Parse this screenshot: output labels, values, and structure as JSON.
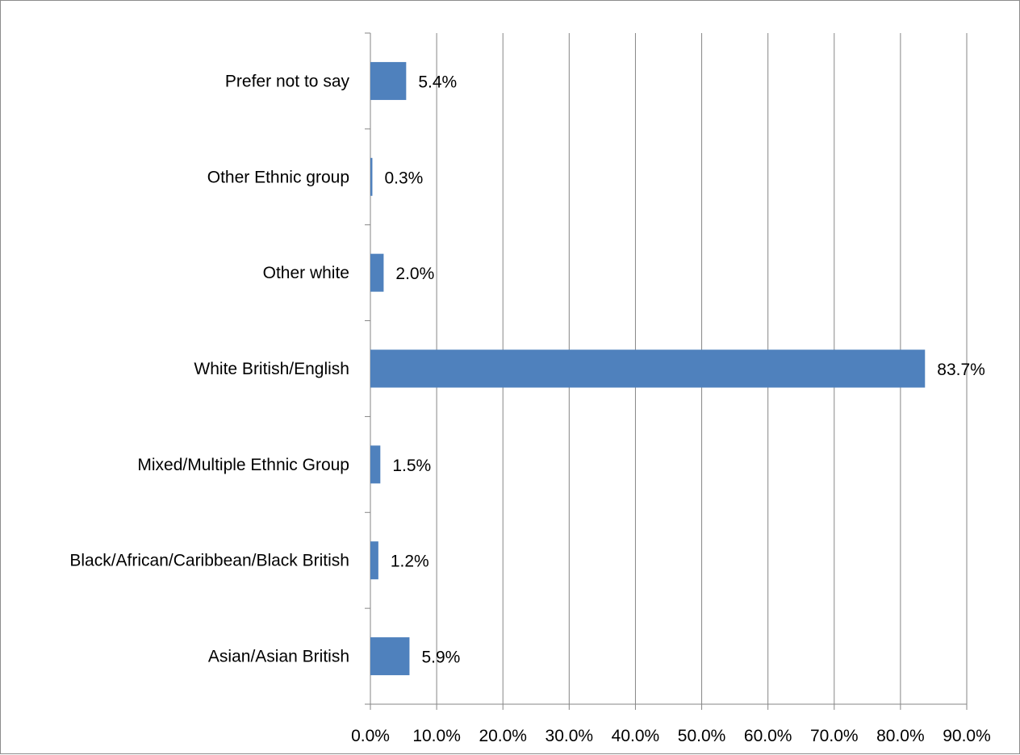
{
  "chart_data": {
    "type": "bar",
    "orientation": "horizontal",
    "categories": [
      "Asian/Asian British",
      "Black/African/Caribbean/Black British",
      "Mixed/Multiple Ethnic Group",
      "White British/English",
      "Other white",
      "Other Ethnic group",
      "Prefer not to say"
    ],
    "values": [
      5.9,
      1.2,
      1.5,
      83.7,
      2.0,
      0.3,
      5.4
    ],
    "data_labels": [
      "5.9%",
      "1.2%",
      "1.5%",
      "83.7%",
      "2.0%",
      "0.3%",
      "5.4%"
    ],
    "x_ticks": [
      "0.0%",
      "10.0%",
      "20.0%",
      "30.0%",
      "40.0%",
      "50.0%",
      "60.0%",
      "70.0%",
      "80.0%",
      "90.0%"
    ],
    "xlim": [
      0,
      90
    ],
    "grid": "vertical",
    "legend": "none",
    "bar_color": "#4f81bd",
    "grid_color": "#868686",
    "title": "",
    "xlabel": "",
    "ylabel": ""
  }
}
